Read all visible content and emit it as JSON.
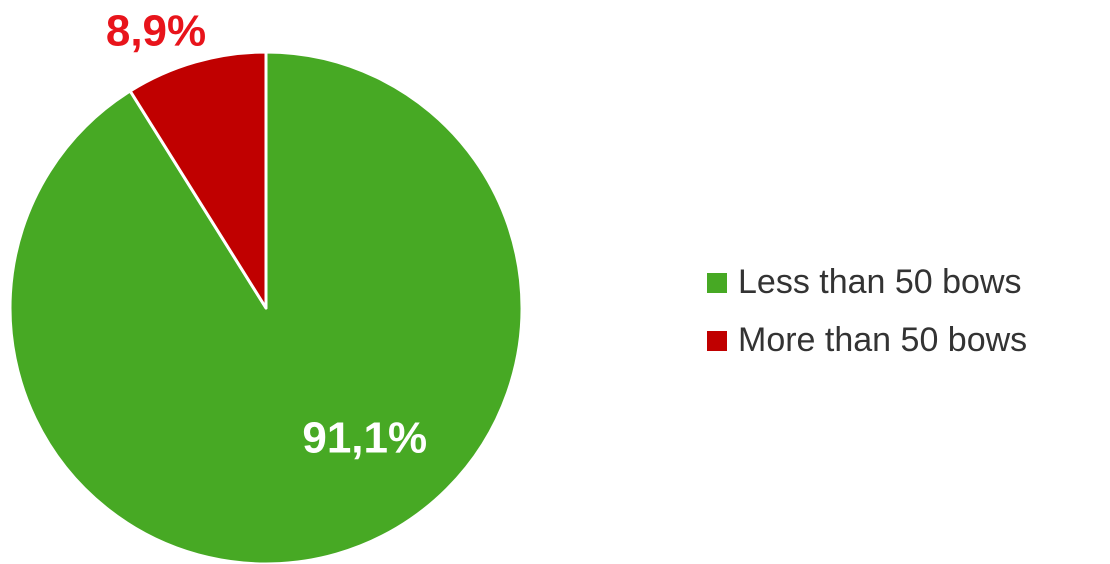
{
  "chart_data": {
    "type": "pie",
    "title": "",
    "slices": [
      {
        "name": "Less than 50 bows",
        "value": 91.1,
        "label": "91,1%",
        "color": "#47a924",
        "label_color": "#ffffff"
      },
      {
        "name": "More than 50 bows",
        "value": 8.9,
        "label": "8,9%",
        "color": "#c00000",
        "label_color": "#e8141b"
      }
    ],
    "start": "12 o'clock",
    "direction": "clockwise",
    "legend": {
      "position": "right",
      "items": [
        {
          "label": "Less than 50 bows",
          "color": "#47a924"
        },
        {
          "label": "More than 50 bows",
          "color": "#c00000"
        }
      ]
    }
  }
}
